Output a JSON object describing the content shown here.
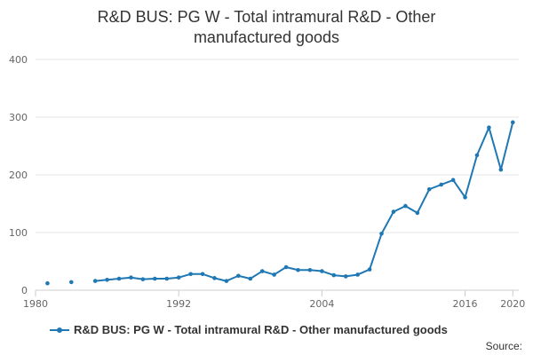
{
  "chart_data": {
    "type": "line",
    "title_lines": [
      "R&D BUS: PG W - Total intramural R&D - Other",
      "manufactured goods"
    ],
    "xlabel": "",
    "ylabel": "",
    "xlim": [
      1980,
      2020.5
    ],
    "ylim": [
      0,
      400
    ],
    "x_ticks": [
      {
        "value": 1980,
        "label": "1980"
      },
      {
        "value": 1992,
        "label": "1992"
      },
      {
        "value": 2004,
        "label": "2004"
      },
      {
        "value": 2016,
        "label": "2016"
      },
      {
        "value": 2020,
        "label": "2020"
      }
    ],
    "y_ticks": [
      {
        "value": 0,
        "label": "0"
      },
      {
        "value": 100,
        "label": "100"
      },
      {
        "value": 200,
        "label": "200"
      },
      {
        "value": 300,
        "label": "300"
      },
      {
        "value": 400,
        "label": "400"
      }
    ],
    "grid": true,
    "legend_position": "bottom",
    "series": [
      {
        "name": "R&D BUS: PG W - Total intramural R&D - Other manufactured goods",
        "color": "#1f78b4",
        "x": [
          1981,
          1983,
          1985,
          1986,
          1987,
          1988,
          1989,
          1990,
          1991,
          1992,
          1993,
          1994,
          1995,
          1996,
          1997,
          1998,
          1999,
          2000,
          2001,
          2002,
          2003,
          2004,
          2005,
          2006,
          2007,
          2008,
          2009,
          2010,
          2011,
          2012,
          2013,
          2014,
          2015,
          2016,
          2017,
          2018,
          2019,
          2020
        ],
        "y": [
          12,
          14,
          16,
          18,
          20,
          22,
          19,
          20,
          20,
          22,
          28,
          28,
          21,
          16,
          25,
          20,
          33,
          27,
          40,
          35,
          35,
          33,
          26,
          24,
          27,
          36,
          98,
          136,
          146,
          134,
          175,
          183,
          191,
          161,
          234,
          282,
          209,
          291
        ],
        "gaps_after_index": [
          0,
          1
        ]
      }
    ]
  },
  "legend": {
    "label": "R&D BUS: PG W - Total intramural R&D - Other manufactured goods"
  },
  "source": {
    "label": "Source:"
  }
}
